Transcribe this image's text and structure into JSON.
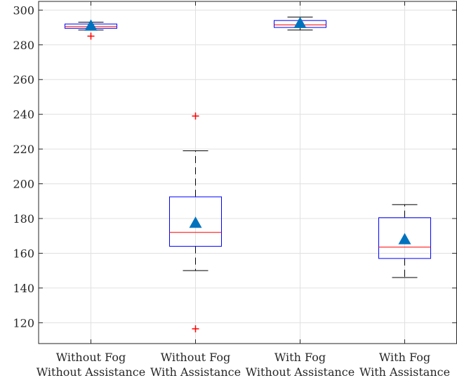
{
  "chart_data": {
    "type": "box",
    "title": "",
    "xlabel": "",
    "ylabel": "",
    "ylim": [
      108,
      305
    ],
    "yticks": [
      120,
      140,
      160,
      180,
      200,
      220,
      240,
      260,
      280,
      300
    ],
    "grid": true,
    "categories": [
      {
        "line1": "Without Fog",
        "line2": "Without Assistance"
      },
      {
        "line1": "Without Fog",
        "line2": "With Assistance"
      },
      {
        "line1": "With Fog",
        "line2": "Without Assistance"
      },
      {
        "line1": "With Fog",
        "line2": "With Assistance"
      }
    ],
    "boxes": [
      {
        "whisker_low": 288.5,
        "q1": 289.5,
        "median": 290.5,
        "q3": 292,
        "whisker_high": 293,
        "mean": 291,
        "outliers": [
          285
        ]
      },
      {
        "whisker_low": 150,
        "q1": 164,
        "median": 172,
        "q3": 192.5,
        "whisker_high": 219,
        "mean": 177.5,
        "outliers": [
          239,
          116.5
        ]
      },
      {
        "whisker_low": 288.5,
        "q1": 290,
        "median": 291.5,
        "q3": 294,
        "whisker_high": 296,
        "mean": 292.5,
        "outliers": []
      },
      {
        "whisker_low": 146,
        "q1": 157,
        "median": 163.5,
        "q3": 180.5,
        "whisker_high": 188,
        "mean": 168,
        "outliers": []
      }
    ],
    "colors": {
      "box": "#0000ff",
      "median": "#ff0000",
      "whisker": "#000000",
      "outlier": "#ff0000",
      "mean": "#0072bd",
      "grid": "#e0e0e0",
      "axis": "#262626"
    },
    "mean_marker": "triangle",
    "outlier_marker": "plus"
  }
}
